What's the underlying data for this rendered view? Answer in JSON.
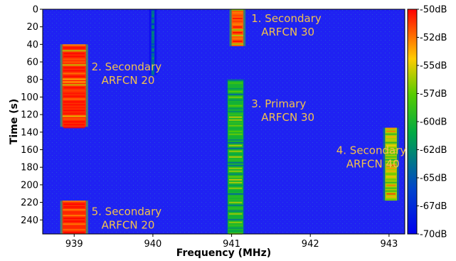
{
  "chart_data": {
    "type": "heatmap",
    "title": "",
    "xlabel": "Frequency (MHz)",
    "ylabel": "Time (s)",
    "xlim": [
      938.6,
      943.2
    ],
    "ylim": [
      0,
      256
    ],
    "y_inverted": true,
    "xticks": [
      939,
      940,
      941,
      942,
      943
    ],
    "xtick_labels": [
      "939",
      "940",
      "941",
      "942",
      "943"
    ],
    "yticks": [
      0,
      20,
      40,
      60,
      80,
      100,
      120,
      140,
      160,
      180,
      200,
      220,
      240
    ],
    "ytick_labels": [
      "0",
      "20",
      "40",
      "60",
      "80",
      "100",
      "120",
      "140",
      "160",
      "180",
      "200",
      "220",
      "240"
    ],
    "colorbar": {
      "min_db": -70,
      "max_db": -50,
      "ticks": [
        -50,
        -52,
        -55,
        -57,
        -60,
        -62,
        -65,
        -67,
        -70
      ],
      "tick_labels": [
        "-50dB",
        "-52dB",
        "-55dB",
        "-57dB",
        "-60dB",
        "-62dB",
        "-65dB",
        "-67dB",
        "-70dB"
      ],
      "colors": [
        "#0000ee",
        "#00aa44",
        "#55cc00",
        "#ffcc00",
        "#ff0000"
      ]
    },
    "background_db": -70,
    "signals": [
      {
        "freq_start": 941.0,
        "freq_end": 941.15,
        "time_start": 0,
        "time_end": 42,
        "level_db": -52
      },
      {
        "freq_start": 938.85,
        "freq_end": 939.15,
        "time_start": 40,
        "time_end": 134,
        "level_db": -51
      },
      {
        "freq_start": 940.95,
        "freq_end": 941.15,
        "time_start": 80,
        "time_end": 256,
        "level_db": -60
      },
      {
        "freq_start": 942.95,
        "freq_end": 943.1,
        "time_start": 135,
        "time_end": 218,
        "level_db": -56
      },
      {
        "freq_start": 938.85,
        "freq_end": 939.15,
        "time_start": 218,
        "time_end": 256,
        "level_db": -51
      },
      {
        "freq_start": 939.98,
        "freq_end": 940.02,
        "time_start": 0,
        "time_end": 75,
        "level_db": -64
      }
    ],
    "annotations": [
      {
        "lines": [
          "1. Secondary",
          "ARFCN 30"
        ],
        "x": 941.25,
        "y": 5
      },
      {
        "lines": [
          "2. Secondary",
          "ARFCN 20"
        ],
        "x": 939.22,
        "y": 60
      },
      {
        "lines": [
          "3. Primary",
          "ARFCN 30"
        ],
        "x": 941.25,
        "y": 102
      },
      {
        "lines": [
          "4. Secondary",
          "ARFCN 40"
        ],
        "x": 942.33,
        "y": 155
      },
      {
        "lines": [
          "5. Secondary",
          "ARFCN 20"
        ],
        "x": 939.22,
        "y": 225
      }
    ]
  }
}
